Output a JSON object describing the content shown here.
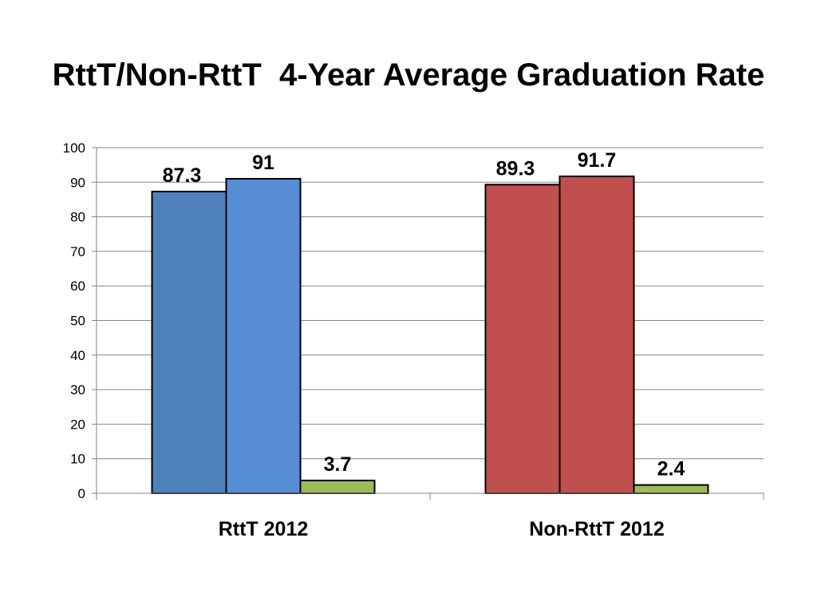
{
  "title": "RttT/Non-RttT  4-Year Average Graduation Rate",
  "chart_data": {
    "type": "bar",
    "title": "RttT/Non-RttT  4-Year Average Graduation Rate",
    "categories": [
      "RttT 2012",
      "Non-RttT 2012"
    ],
    "bars": [
      [
        {
          "value": 87.3,
          "label": "87.3",
          "color": "#4f81bd"
        },
        {
          "value": 91,
          "label": "91",
          "color": "#558ed5"
        },
        {
          "value": 3.7,
          "label": "3.7",
          "color": "#9bbb59"
        }
      ],
      [
        {
          "value": 89.3,
          "label": "89.3",
          "color": "#c0504d"
        },
        {
          "value": 91.7,
          "label": "91.7",
          "color": "#c0504d"
        },
        {
          "value": 2.4,
          "label": "2.4",
          "color": "#9bbb59"
        }
      ]
    ],
    "yticks": [
      "0",
      "10",
      "20",
      "30",
      "40",
      "50",
      "60",
      "70",
      "80",
      "90",
      "100"
    ],
    "ylim": [
      0,
      100
    ],
    "xlabel": "",
    "ylabel": "",
    "grid": true,
    "legend": "none"
  }
}
